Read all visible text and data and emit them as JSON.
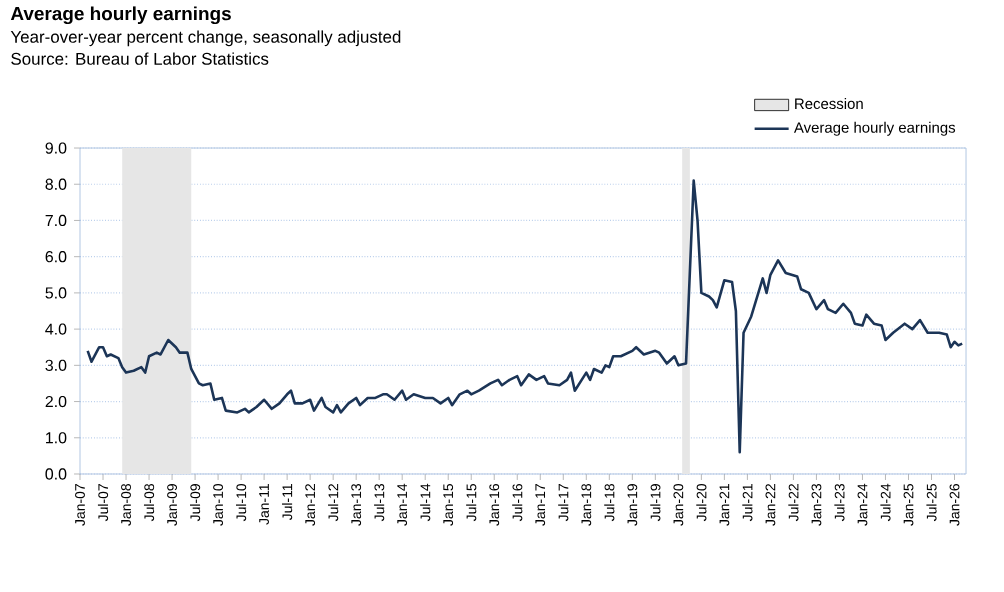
{
  "chart_data": {
    "type": "line",
    "title": "Average hourly earnings",
    "subtitle": "Year-over-year percent change, seasonally adjusted",
    "annotations": [
      "Source: Bureau of Labor Statistics"
    ],
    "series": [
      {
        "name": "Average hourly earnings",
        "color": "#1c3557",
        "x": [
          "2007-03",
          "2007-04",
          "2007-06",
          "2007-07",
          "2007-08",
          "2007-09",
          "2007-11",
          "2007-12",
          "2008-01",
          "2008-03",
          "2008-05",
          "2008-06",
          "2008-07",
          "2008-09",
          "2008-10",
          "2008-12",
          "2009-02",
          "2009-03",
          "2009-05",
          "2009-06",
          "2009-08",
          "2009-09",
          "2009-11",
          "2009-12",
          "2010-02",
          "2010-03",
          "2010-06",
          "2010-08",
          "2010-09",
          "2010-11",
          "2011-01",
          "2011-03",
          "2011-05",
          "2011-07",
          "2011-08",
          "2011-09",
          "2011-11",
          "2012-01",
          "2012-02",
          "2012-04",
          "2012-05",
          "2012-07",
          "2012-08",
          "2012-09",
          "2012-11",
          "2013-01",
          "2013-02",
          "2013-04",
          "2013-06",
          "2013-08",
          "2013-09",
          "2013-11",
          "2014-01",
          "2014-02",
          "2014-04",
          "2014-07",
          "2014-09",
          "2014-11",
          "2015-01",
          "2015-02",
          "2015-04",
          "2015-06",
          "2015-07",
          "2015-09",
          "2015-12",
          "2016-02",
          "2016-03",
          "2016-05",
          "2016-07",
          "2016-08",
          "2016-10",
          "2016-12",
          "2017-02",
          "2017-03",
          "2017-06",
          "2017-08",
          "2017-09",
          "2017-10",
          "2018-01",
          "2018-02",
          "2018-03",
          "2018-05",
          "2018-06",
          "2018-07",
          "2018-08",
          "2018-10",
          "2019-01",
          "2019-02",
          "2019-04",
          "2019-07",
          "2019-08",
          "2019-10",
          "2019-12",
          "2020-01",
          "2020-03",
          "2020-05",
          "2020-06",
          "2020-07",
          "2020-09",
          "2020-10",
          "2020-11",
          "2021-01",
          "2021-03",
          "2021-04",
          "2021-05",
          "2021-06",
          "2021-08",
          "2021-11",
          "2021-12",
          "2022-01",
          "2022-03",
          "2022-05",
          "2022-08",
          "2022-09",
          "2022-11",
          "2023-01",
          "2023-03",
          "2023-04",
          "2023-06",
          "2023-08",
          "2023-10",
          "2023-11",
          "2024-01",
          "2024-02",
          "2024-04",
          "2024-06",
          "2024-07",
          "2024-09",
          "2024-12",
          "2025-02",
          "2025-04",
          "2025-06",
          "2025-07",
          "2025-09",
          "2025-11",
          "2025-12",
          "2026-01",
          "2026-02",
          "2026-03"
        ],
        "values": [
          3.4,
          3.1,
          3.5,
          3.5,
          3.25,
          3.3,
          3.2,
          2.95,
          2.8,
          2.85,
          2.95,
          2.8,
          3.25,
          3.35,
          3.3,
          3.7,
          3.5,
          3.35,
          3.35,
          2.9,
          2.5,
          2.45,
          2.5,
          2.05,
          2.1,
          1.75,
          1.7,
          1.8,
          1.7,
          1.85,
          2.05,
          1.8,
          1.95,
          2.2,
          2.3,
          1.95,
          1.95,
          2.05,
          1.75,
          2.1,
          1.85,
          1.7,
          1.9,
          1.7,
          1.95,
          2.1,
          1.9,
          2.1,
          2.1,
          2.2,
          2.2,
          2.05,
          2.3,
          2.05,
          2.2,
          2.1,
          2.1,
          1.95,
          2.1,
          1.9,
          2.2,
          2.3,
          2.2,
          2.3,
          2.5,
          2.6,
          2.45,
          2.6,
          2.7,
          2.45,
          2.75,
          2.6,
          2.7,
          2.5,
          2.45,
          2.6,
          2.8,
          2.3,
          2.8,
          2.6,
          2.9,
          2.8,
          3.0,
          2.95,
          3.25,
          3.25,
          3.4,
          3.5,
          3.3,
          3.4,
          3.35,
          3.05,
          3.25,
          3.0,
          3.05,
          8.1,
          7.0,
          5.0,
          4.9,
          4.8,
          4.6,
          5.35,
          5.3,
          4.5,
          0.6,
          3.9,
          4.35,
          5.4,
          5.0,
          5.5,
          5.9,
          5.55,
          5.45,
          5.1,
          5.0,
          4.55,
          4.8,
          4.55,
          4.45,
          4.7,
          4.45,
          4.15,
          4.1,
          4.4,
          4.15,
          4.1,
          3.7,
          3.9,
          4.15,
          4.0,
          4.25,
          3.9,
          3.9,
          3.9,
          3.85,
          3.5,
          3.65,
          3.55,
          3.6
        ]
      }
    ],
    "xlim": [
      "2007-01",
      "2026-04"
    ],
    "ylim": [
      0,
      9
    ],
    "yticks": [
      {
        "value": 0,
        "label": "0.0"
      },
      {
        "value": 1,
        "label": "1.0"
      },
      {
        "value": 2,
        "label": "2.0"
      },
      {
        "value": 3,
        "label": "3.0"
      },
      {
        "value": 4,
        "label": "4.0"
      },
      {
        "value": 5,
        "label": "5.0"
      },
      {
        "value": 6,
        "label": "6.0"
      },
      {
        "value": 7,
        "label": "7.0"
      },
      {
        "value": 8,
        "label": "8.0"
      },
      {
        "value": 9,
        "label": "9.0"
      }
    ],
    "xticks": [
      {
        "value": "2007-01",
        "label": "Jan-07"
      },
      {
        "value": "2007-07",
        "label": "Jul-07"
      },
      {
        "value": "2008-01",
        "label": "Jan-08"
      },
      {
        "value": "2008-07",
        "label": "Jul-08"
      },
      {
        "value": "2009-01",
        "label": "Jan-09"
      },
      {
        "value": "2009-07",
        "label": "Jul-09"
      },
      {
        "value": "2010-01",
        "label": "Jan-10"
      },
      {
        "value": "2010-07",
        "label": "Jul-10"
      },
      {
        "value": "2011-01",
        "label": "Jan-11"
      },
      {
        "value": "2011-07",
        "label": "Jul-11"
      },
      {
        "value": "2012-01",
        "label": "Jan-12"
      },
      {
        "value": "2012-07",
        "label": "Jul-12"
      },
      {
        "value": "2013-01",
        "label": "Jan-13"
      },
      {
        "value": "2013-07",
        "label": "Jul-13"
      },
      {
        "value": "2014-01",
        "label": "Jan-14"
      },
      {
        "value": "2014-07",
        "label": "Jul-14"
      },
      {
        "value": "2015-01",
        "label": "Jan-15"
      },
      {
        "value": "2015-07",
        "label": "Jul-15"
      },
      {
        "value": "2016-01",
        "label": "Jan-16"
      },
      {
        "value": "2016-07",
        "label": "Jul-16"
      },
      {
        "value": "2017-01",
        "label": "Jan-17"
      },
      {
        "value": "2017-07",
        "label": "Jul-17"
      },
      {
        "value": "2018-01",
        "label": "Jan-18"
      },
      {
        "value": "2018-07",
        "label": "Jul-18"
      },
      {
        "value": "2019-01",
        "label": "Jan-19"
      },
      {
        "value": "2019-07",
        "label": "Jul-19"
      },
      {
        "value": "2020-01",
        "label": "Jan-20"
      },
      {
        "value": "2020-07",
        "label": "Jul-20"
      },
      {
        "value": "2021-01",
        "label": "Jan-21"
      },
      {
        "value": "2021-07",
        "label": "Jul-21"
      },
      {
        "value": "2022-01",
        "label": "Jan-22"
      },
      {
        "value": "2022-07",
        "label": "Jul-22"
      },
      {
        "value": "2023-01",
        "label": "Jan-23"
      },
      {
        "value": "2023-07",
        "label": "Jul-23"
      },
      {
        "value": "2024-01",
        "label": "Jan-24"
      },
      {
        "value": "2024-07",
        "label": "Jul-24"
      },
      {
        "value": "2025-01",
        "label": "Jan-25"
      },
      {
        "value": "2025-07",
        "label": "Jul-25"
      },
      {
        "value": "2026-01",
        "label": "Jan-26"
      }
    ],
    "bands": [
      {
        "axis": "x",
        "from": "2007-12",
        "to": "2009-06",
        "label": "Recession",
        "color": "#e6e6e6"
      },
      {
        "axis": "x",
        "from": "2020-02",
        "to": "2020-04",
        "color": "#e6e6e6"
      }
    ],
    "grid": "y",
    "legend": "top right"
  }
}
